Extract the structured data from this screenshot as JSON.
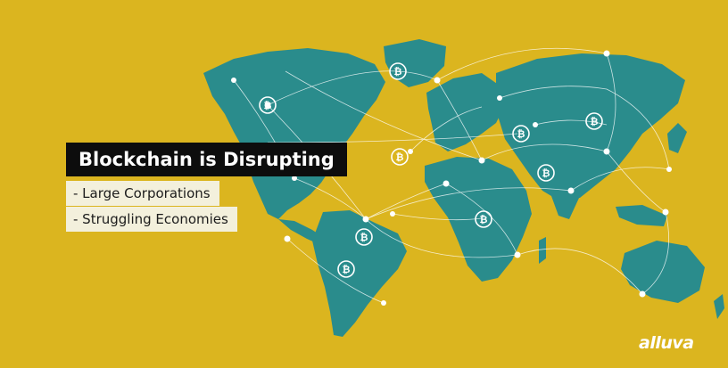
{
  "headline": "Blockchain is Disrupting",
  "bullets": [
    "- Large Corporations",
    "- Struggling Economies"
  ],
  "logo": "alluva",
  "colors": {
    "background": "#dbb51f",
    "land": "#2a8c8c",
    "network": "#ffffff",
    "headline_bg": "#0d0d0d",
    "bullet_bg": "#f3f0dc"
  },
  "icons": [
    "bitcoin-icon",
    "world-map-illustration"
  ]
}
